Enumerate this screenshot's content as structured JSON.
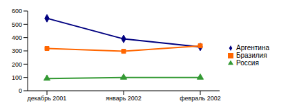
{
  "chart_data": {
    "type": "line",
    "categories": [
      "декабрь 2001",
      "январь 2002",
      "февраль 2002"
    ],
    "series": [
      {
        "name": "Аргентина",
        "color": "#000080",
        "marker": "diamond",
        "values": [
          545,
          390,
          330
        ]
      },
      {
        "name": "Бразилия",
        "color": "#ff6600",
        "marker": "square",
        "values": [
          318,
          297,
          338
        ]
      },
      {
        "name": "Россия",
        "color": "#339933",
        "marker": "triangle",
        "values": [
          92,
          100,
          100
        ]
      }
    ],
    "ylim": [
      0,
      600
    ],
    "yticks": [
      0,
      100,
      200,
      300,
      400,
      500,
      600
    ],
    "grid": false,
    "legend": "right"
  }
}
